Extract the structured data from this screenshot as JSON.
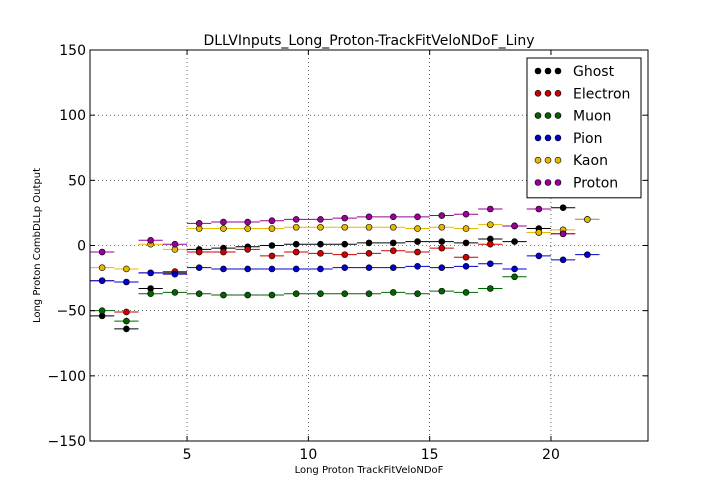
{
  "chart_data": {
    "type": "scatter",
    "title": "DLLVInputs_Long_Proton-TrackFitVeloNDoF_Liny",
    "xlabel": "Long Proton TrackFitVeloNDoF",
    "ylabel": "Long Proton CombDLLp Output",
    "xlim": [
      1,
      24
    ],
    "ylim": [
      -150,
      150
    ],
    "xticks": [
      5,
      10,
      15,
      20
    ],
    "xtick_labels": [
      "5",
      "10",
      "15",
      "20"
    ],
    "yticks": [
      -150,
      -100,
      -50,
      0,
      50,
      100,
      150
    ],
    "ytick_labels": [
      "−150",
      "−100",
      "−50",
      "0",
      "50",
      "100",
      "150"
    ],
    "grid": true,
    "legend_position": "top-right",
    "bin_half_width": 0.5,
    "series": [
      {
        "name": "Ghost",
        "color": "#000000",
        "x": [
          1.5,
          2.5,
          3.5,
          4.5,
          5.5,
          6.5,
          7.5,
          8.5,
          9.5,
          10.5,
          11.5,
          12.5,
          13.5,
          14.5,
          15.5,
          16.5,
          17.5,
          18.5,
          19.5,
          20.5,
          21.5
        ],
        "y": [
          -54,
          -64,
          -33,
          -21,
          -3,
          -2,
          -1,
          0,
          1,
          1,
          1,
          2,
          2,
          3,
          3,
          2,
          5,
          3,
          13,
          29,
          20
        ]
      },
      {
        "name": "Electron",
        "color": "#cc0000",
        "x": [
          1.5,
          2.5,
          3.5,
          4.5,
          5.5,
          6.5,
          7.5,
          8.5,
          9.5,
          10.5,
          11.5,
          12.5,
          13.5,
          14.5,
          15.5,
          16.5,
          17.5,
          18.5,
          19.5,
          20.5
        ],
        "y": [
          -27,
          -51,
          -21,
          -20,
          -5,
          -5,
          -3,
          -8,
          -5,
          -6,
          -7,
          -6,
          -4,
          -5,
          -2,
          -9,
          1,
          15,
          10,
          9
        ]
      },
      {
        "name": "Muon",
        "color": "#006400",
        "x": [
          1.5,
          2.5,
          3.5,
          4.5,
          5.5,
          6.5,
          7.5,
          8.5,
          9.5,
          10.5,
          11.5,
          12.5,
          13.5,
          14.5,
          15.5,
          16.5,
          17.5,
          18.5
        ],
        "y": [
          -50,
          -58,
          -37,
          -36,
          -37,
          -38,
          -38,
          -38,
          -37,
          -37,
          -37,
          -37,
          -36,
          -37,
          -35,
          -36,
          -33,
          -24
        ]
      },
      {
        "name": "Pion",
        "color": "#0000cc",
        "x": [
          1.5,
          2.5,
          3.5,
          4.5,
          5.5,
          6.5,
          7.5,
          8.5,
          9.5,
          10.5,
          11.5,
          12.5,
          13.5,
          14.5,
          15.5,
          16.5,
          17.5,
          18.5,
          19.5,
          20.5,
          21.5
        ],
        "y": [
          -27,
          -28,
          -21,
          -22,
          -17,
          -18,
          -18,
          -18,
          -18,
          -18,
          -17,
          -17,
          -17,
          -16,
          -17,
          -16,
          -14,
          -18,
          -8,
          -11,
          -7
        ]
      },
      {
        "name": "Kaon",
        "color": "#e6b800",
        "x": [
          1.5,
          2.5,
          3.5,
          4.5,
          5.5,
          6.5,
          7.5,
          8.5,
          9.5,
          10.5,
          11.5,
          12.5,
          13.5,
          14.5,
          15.5,
          16.5,
          17.5,
          18.5,
          19.5,
          20.5,
          21.5
        ],
        "y": [
          -17,
          -18,
          1,
          -3,
          13,
          13,
          13,
          13,
          14,
          14,
          14,
          14,
          14,
          13,
          14,
          13,
          16,
          15,
          10,
          12,
          20
        ]
      },
      {
        "name": "Proton",
        "color": "#990099",
        "x": [
          1.5,
          3.5,
          4.5,
          5.5,
          6.5,
          7.5,
          8.5,
          9.5,
          10.5,
          11.5,
          12.5,
          13.5,
          14.5,
          15.5,
          16.5,
          17.5,
          18.5,
          19.5,
          20.5
        ],
        "y": [
          -5,
          4,
          1,
          17,
          18,
          18,
          19,
          20,
          20,
          21,
          22,
          22,
          22,
          23,
          24,
          28,
          15,
          28,
          9
        ]
      }
    ]
  }
}
